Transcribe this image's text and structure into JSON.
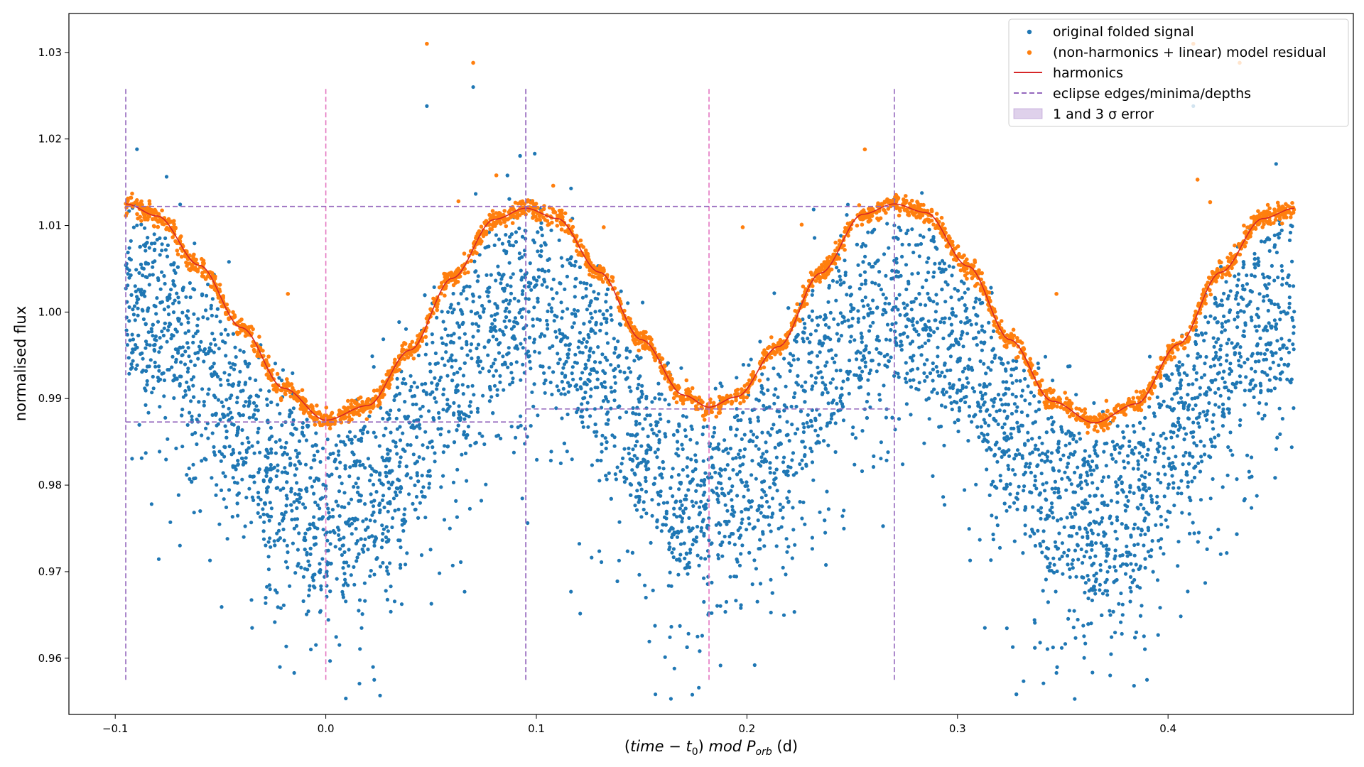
{
  "chart_data": {
    "type": "scatter",
    "xlabel": {
      "open": "(",
      "time": "time",
      "minus": " − ",
      "t": "t",
      "t_sub": "0",
      "close": ") ",
      "mod": "mod",
      "space": " ",
      "P": "P",
      "P_sub": "orb",
      "unit": " (d)"
    },
    "ylabel": "normalised flux",
    "xlim": [
      -0.122,
      0.488
    ],
    "ylim": [
      0.9535,
      1.0345
    ],
    "xticks": [
      {
        "value": -0.1,
        "label": "−0.1"
      },
      {
        "value": 0.0,
        "label": "0.0"
      },
      {
        "value": 0.1,
        "label": "0.1"
      },
      {
        "value": 0.2,
        "label": "0.2"
      },
      {
        "value": 0.3,
        "label": "0.3"
      },
      {
        "value": 0.4,
        "label": "0.4"
      }
    ],
    "yticks": [
      {
        "value": 0.96,
        "label": "0.96"
      },
      {
        "value": 0.97,
        "label": "0.97"
      },
      {
        "value": 0.98,
        "label": "0.98"
      },
      {
        "value": 0.99,
        "label": "0.99"
      },
      {
        "value": 1.0,
        "label": "1.00"
      },
      {
        "value": 1.01,
        "label": "1.01"
      },
      {
        "value": 1.02,
        "label": "1.02"
      },
      {
        "value": 1.03,
        "label": "1.03"
      }
    ],
    "legend": {
      "position": "top-right",
      "entries": [
        {
          "label": "original folded signal",
          "kind": "marker",
          "color": "#1f77b4"
        },
        {
          "label": "(non-harmonics + linear) model residual",
          "kind": "marker",
          "color": "#ff7f0e"
        },
        {
          "label": "harmonics",
          "kind": "line",
          "color": "#d62728"
        },
        {
          "label": "eclipse edges/minima/depths",
          "kind": "dashed",
          "color": "#9467bd"
        },
        {
          "label": "1 and 3 σ error",
          "kind": "patch",
          "color": "#9467bd"
        }
      ]
    },
    "series": [
      {
        "name": "original folded signal",
        "color": "#1f77b4",
        "kind": "scatter",
        "x_range": [
          -0.095,
          0.46
        ],
        "n_points_visual": 5200,
        "outliers": [
          {
            "x": 0.048,
            "y": 1.0238
          },
          {
            "x": 0.07,
            "y": 1.026
          },
          {
            "x": 0.412,
            "y": 1.0238
          },
          {
            "x": -0.015,
            "y": 0.9583
          },
          {
            "x": 0.023,
            "y": 0.9575
          },
          {
            "x": 0.39,
            "y": 0.9575
          },
          {
            "x": 0.347,
            "y": 0.9583
          },
          {
            "x": -0.035,
            "y": 0.9635
          },
          {
            "x": 0.313,
            "y": 0.9635
          },
          {
            "x": -0.055,
            "y": 0.9713
          },
          {
            "x": 0.306,
            "y": 0.9713
          }
        ]
      },
      {
        "name": "(non-harmonics + linear) model residual",
        "color": "#ff7f0e",
        "kind": "scatter",
        "x_range": [
          -0.095,
          0.46
        ],
        "n_points_visual": 2600,
        "outliers": [
          {
            "x": 0.048,
            "y": 1.031
          },
          {
            "x": 0.07,
            "y": 1.0288
          },
          {
            "x": 0.412,
            "y": 1.031
          },
          {
            "x": 0.434,
            "y": 1.0288
          },
          {
            "x": -0.018,
            "y": 1.0021
          },
          {
            "x": 0.347,
            "y": 1.0021
          },
          {
            "x": 0.198,
            "y": 1.0098
          },
          {
            "x": 0.081,
            "y": 1.0158
          },
          {
            "x": 0.063,
            "y": 1.0128
          },
          {
            "x": 0.108,
            "y": 1.0146
          },
          {
            "x": 0.256,
            "y": 1.0188
          },
          {
            "x": 0.414,
            "y": 1.0153
          },
          {
            "x": 0.132,
            "y": 1.0098
          },
          {
            "x": 0.226,
            "y": 1.0101
          },
          {
            "x": 0.42,
            "y": 1.0127
          }
        ]
      },
      {
        "name": "harmonics",
        "color": "#d62728",
        "kind": "line",
        "x": [
          -0.095,
          -0.08,
          -0.06,
          -0.04,
          -0.02,
          0.0,
          0.02,
          0.04,
          0.06,
          0.08,
          0.095,
          0.11,
          0.13,
          0.15,
          0.17,
          0.182,
          0.195,
          0.215,
          0.235,
          0.255,
          0.27,
          0.285,
          0.305,
          0.325,
          0.345,
          0.365,
          0.385,
          0.405,
          0.425,
          0.445,
          0.46
        ],
        "y": [
          1.0125,
          1.0111,
          1.0054,
          0.9982,
          0.9912,
          0.9875,
          0.9892,
          0.9956,
          1.0039,
          1.0107,
          1.012,
          1.0108,
          1.0046,
          0.9968,
          0.9904,
          0.989,
          0.9902,
          0.996,
          1.0045,
          1.0113,
          1.0125,
          1.0115,
          1.0053,
          0.9968,
          0.9897,
          0.9872,
          0.9894,
          0.9963,
          1.0046,
          1.0108,
          1.012
        ]
      }
    ],
    "eclipse_markers": {
      "edges_x": [
        -0.095,
        0.095,
        0.095,
        0.27
      ],
      "minima_x": [
        0.0,
        0.182
      ],
      "vertical_span": [
        0.9575,
        1.026
      ],
      "depth_lines": [
        {
          "y": 1.0122,
          "x_start": -0.095,
          "x_end": 0.27
        },
        {
          "y": 0.9873,
          "x_start": -0.095,
          "x_end": 0.095
        },
        {
          "y": 0.9888,
          "x_start": 0.095,
          "x_end": 0.27
        }
      ],
      "edge_color": "#9467bd",
      "minima_color": "#e377c2"
    },
    "grid": false
  }
}
